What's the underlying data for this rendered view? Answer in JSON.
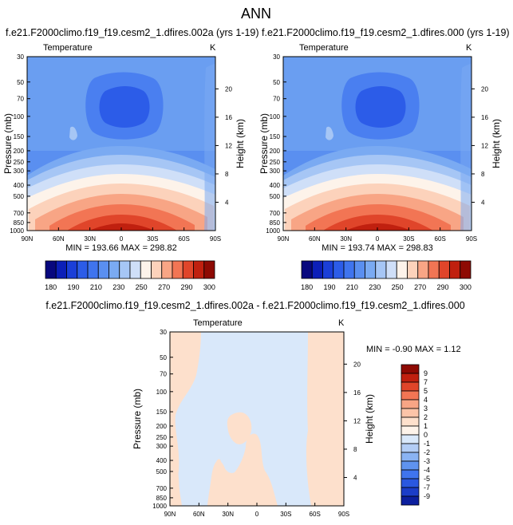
{
  "figure_title": "ANN",
  "chart_data": [
    {
      "type": "heatmap",
      "title": "f.e21.F2000climo.f19_f19.cesm2_1.dfires.002a (yrs 1-19)",
      "field_label": "Temperature",
      "units": "K",
      "xlabel": "",
      "ylabel": "Pressure (mb)",
      "right_ylabel": "Height (km)",
      "x_tick_labels": [
        "90N",
        "60N",
        "30N",
        "0",
        "30S",
        "60S",
        "90S"
      ],
      "y_tick_labels": [
        "30",
        "50",
        "70",
        "100",
        "150",
        "200",
        "250",
        "300",
        "400",
        "500",
        "700",
        "850",
        "1000"
      ],
      "right_tick_labels": [
        "20",
        "16",
        "12",
        "8",
        "4"
      ],
      "stats": "MIN = 193.66   MAX = 298.82",
      "min": 193.66,
      "max": 298.82,
      "colorbar_labels": [
        "180",
        "190",
        "210",
        "230",
        "250",
        "270",
        "290",
        "300"
      ],
      "levels": [
        180,
        185,
        190,
        200,
        210,
        220,
        230,
        240,
        250,
        260,
        270,
        280,
        290,
        295,
        300
      ],
      "colors": [
        "#08087e",
        "#0c1fb8",
        "#1b3fd8",
        "#2c5ce8",
        "#3f74ee",
        "#5a8ff0",
        "#7aaaf2",
        "#a6c6f5",
        "#cfdff8",
        "#fdf3ea",
        "#fcd2bb",
        "#f8a585",
        "#f27554",
        "#e0452a",
        "#c0200f",
        "#8e0a03"
      ]
    },
    {
      "type": "heatmap",
      "title": "f.e21.F2000climo.f19_f19.cesm2_1.dfires.000 (yrs 1-19)",
      "field_label": "Temperature",
      "units": "K",
      "xlabel": "",
      "ylabel": "Pressure (mb)",
      "right_ylabel": "Height (km)",
      "x_tick_labels": [
        "90N",
        "60N",
        "30N",
        "0",
        "30S",
        "60S",
        "90S"
      ],
      "y_tick_labels": [
        "30",
        "50",
        "70",
        "100",
        "150",
        "200",
        "250",
        "300",
        "400",
        "500",
        "700",
        "850",
        "1000"
      ],
      "right_tick_labels": [
        "20",
        "16",
        "12",
        "8",
        "4"
      ],
      "stats": "MIN = 193.74   MAX = 298.83",
      "min": 193.74,
      "max": 298.83,
      "colorbar_labels": [
        "180",
        "190",
        "210",
        "230",
        "250",
        "270",
        "290",
        "300"
      ],
      "levels": [
        180,
        185,
        190,
        200,
        210,
        220,
        230,
        240,
        250,
        260,
        270,
        280,
        290,
        295,
        300
      ],
      "colors": [
        "#08087e",
        "#0c1fb8",
        "#1b3fd8",
        "#2c5ce8",
        "#3f74ee",
        "#5a8ff0",
        "#7aaaf2",
        "#a6c6f5",
        "#cfdff8",
        "#fdf3ea",
        "#fcd2bb",
        "#f8a585",
        "#f27554",
        "#e0452a",
        "#c0200f",
        "#8e0a03"
      ]
    },
    {
      "type": "heatmap",
      "title": "f.e21.F2000climo.f19_f19.cesm2_1.dfires.002a - f.e21.F2000climo.f19_f19.cesm2_1.dfires.000",
      "field_label": "Temperature",
      "units": "K",
      "xlabel": "",
      "ylabel": "Pressure (mb)",
      "right_ylabel": "Height (km)",
      "x_tick_labels": [
        "90N",
        "60N",
        "30N",
        "0",
        "30S",
        "60S",
        "90S"
      ],
      "y_tick_labels": [
        "30",
        "50",
        "70",
        "100",
        "150",
        "200",
        "250",
        "300",
        "400",
        "500",
        "700",
        "850",
        "1000"
      ],
      "right_tick_labels": [
        "20",
        "16",
        "12",
        "8",
        "4"
      ],
      "stats": "MIN = -0.90  MAX =  1.12",
      "min": -0.9,
      "max": 1.12,
      "colorbar_labels": [
        "9",
        "7",
        "5",
        "4",
        "3",
        "2",
        "1",
        "0",
        "-1",
        "-2",
        "-3",
        "-4",
        "-5",
        "-7",
        "-9"
      ],
      "levels": [
        9,
        7,
        5,
        4,
        3,
        2,
        1,
        0,
        -1,
        -2,
        -3,
        -4,
        -5,
        -7,
        -9
      ],
      "colors": [
        "#8e0a03",
        "#c0200f",
        "#e0452a",
        "#f27554",
        "#f8a585",
        "#fcc4a8",
        "#fde0cc",
        "#fdf3ea",
        "#d9e8fa",
        "#b3cdf5",
        "#8ab3f3",
        "#5f93ef",
        "#3f74ee",
        "#2a58e0",
        "#1b3dc8",
        "#0c1f9e"
      ]
    }
  ]
}
